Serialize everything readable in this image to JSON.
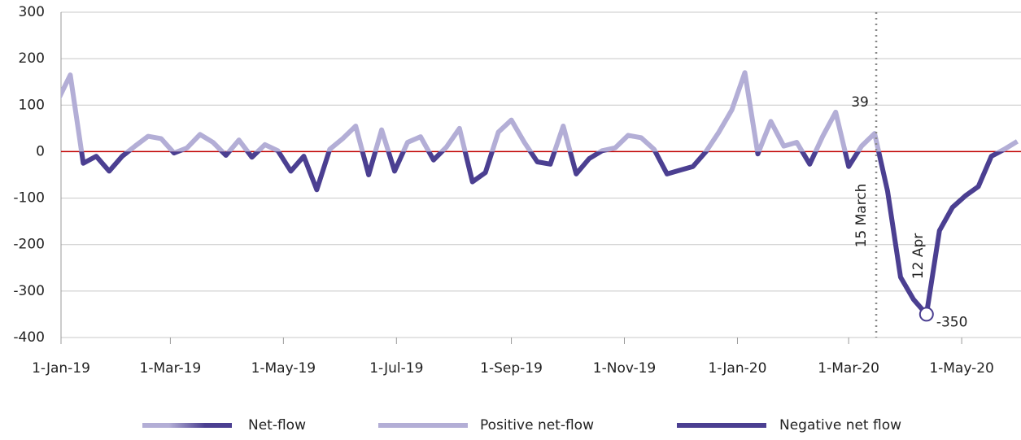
{
  "chart_data": {
    "type": "line",
    "x": [
      "2018-12-30",
      "2019-01-06",
      "2019-01-13",
      "2019-01-20",
      "2019-01-27",
      "2019-02-03",
      "2019-02-10",
      "2019-02-17",
      "2019-02-24",
      "2019-03-03",
      "2019-03-10",
      "2019-03-17",
      "2019-03-24",
      "2019-03-31",
      "2019-04-07",
      "2019-04-14",
      "2019-04-21",
      "2019-04-28",
      "2019-05-05",
      "2019-05-12",
      "2019-05-19",
      "2019-05-26",
      "2019-06-02",
      "2019-06-09",
      "2019-06-16",
      "2019-06-23",
      "2019-06-30",
      "2019-07-07",
      "2019-07-14",
      "2019-07-21",
      "2019-07-28",
      "2019-08-04",
      "2019-08-11",
      "2019-08-18",
      "2019-08-25",
      "2019-09-01",
      "2019-09-08",
      "2019-09-15",
      "2019-09-22",
      "2019-09-29",
      "2019-10-06",
      "2019-10-13",
      "2019-10-20",
      "2019-10-27",
      "2019-11-03",
      "2019-11-10",
      "2019-11-17",
      "2019-11-24",
      "2019-12-01",
      "2019-12-08",
      "2019-12-15",
      "2019-12-22",
      "2019-12-29",
      "2020-01-05",
      "2020-01-12",
      "2020-01-19",
      "2020-01-26",
      "2020-02-02",
      "2020-02-09",
      "2020-02-16",
      "2020-02-23",
      "2020-03-01",
      "2020-03-08",
      "2020-03-15",
      "2020-03-22",
      "2020-03-29",
      "2020-04-05",
      "2020-04-12",
      "2020-04-19",
      "2020-04-26",
      "2020-05-03",
      "2020-05-10",
      "2020-05-17",
      "2020-05-24",
      "2020-05-31"
    ],
    "series": [
      {
        "name": "Net-flow",
        "values": [
          108,
          165,
          -25,
          -10,
          -42,
          -10,
          12,
          33,
          28,
          -3,
          8,
          37,
          20,
          -8,
          25,
          -12,
          15,
          2,
          -42,
          -10,
          -82,
          5,
          28,
          55,
          -50,
          47,
          -42,
          20,
          32,
          -18,
          10,
          50,
          -65,
          -45,
          42,
          68,
          20,
          -22,
          -27,
          55,
          -48,
          -15,
          2,
          8,
          35,
          30,
          5,
          -48,
          -40,
          -32,
          0,
          42,
          90,
          170,
          -5,
          65,
          12,
          20,
          -27,
          33,
          85,
          -32,
          12,
          39,
          -85,
          -270,
          -318,
          -350,
          -170,
          -120,
          -95,
          -75,
          -10,
          5,
          22
        ]
      }
    ],
    "positive": {
      "name": "Positive net-flow",
      "color": "#b3aed6"
    },
    "negative": {
      "name": "Negative net flow",
      "color": "#4b3f91"
    },
    "zero_line_color": "#c00000",
    "annotations": [
      {
        "x": "2020-03-15",
        "text": "15 March",
        "line": true
      },
      {
        "x": "2020-04-12",
        "text": "12 Apr",
        "marker": true
      }
    ],
    "xlim": [
      "2019-01-01",
      "2020-06-02"
    ],
    "xticks": [
      {
        "value": "2019-01-01",
        "label": "1-Jan-19"
      },
      {
        "value": "2019-03-01",
        "label": "1-Mar-19"
      },
      {
        "value": "2019-05-01",
        "label": "1-May-19"
      },
      {
        "value": "2019-07-01",
        "label": "1-Jul-19"
      },
      {
        "value": "2019-09-01",
        "label": "1-Sep-19"
      },
      {
        "value": "2019-11-01",
        "label": "1-Nov-19"
      },
      {
        "value": "2020-01-01",
        "label": "1-Jan-20"
      },
      {
        "value": "2020-03-01",
        "label": "1-Mar-20"
      },
      {
        "value": "2020-05-01",
        "label": "1-May-20"
      }
    ],
    "ylim": [
      -400,
      300
    ],
    "yticks": [
      -400,
      -300,
      -200,
      -100,
      0,
      100,
      200,
      300
    ],
    "grid": true
  }
}
